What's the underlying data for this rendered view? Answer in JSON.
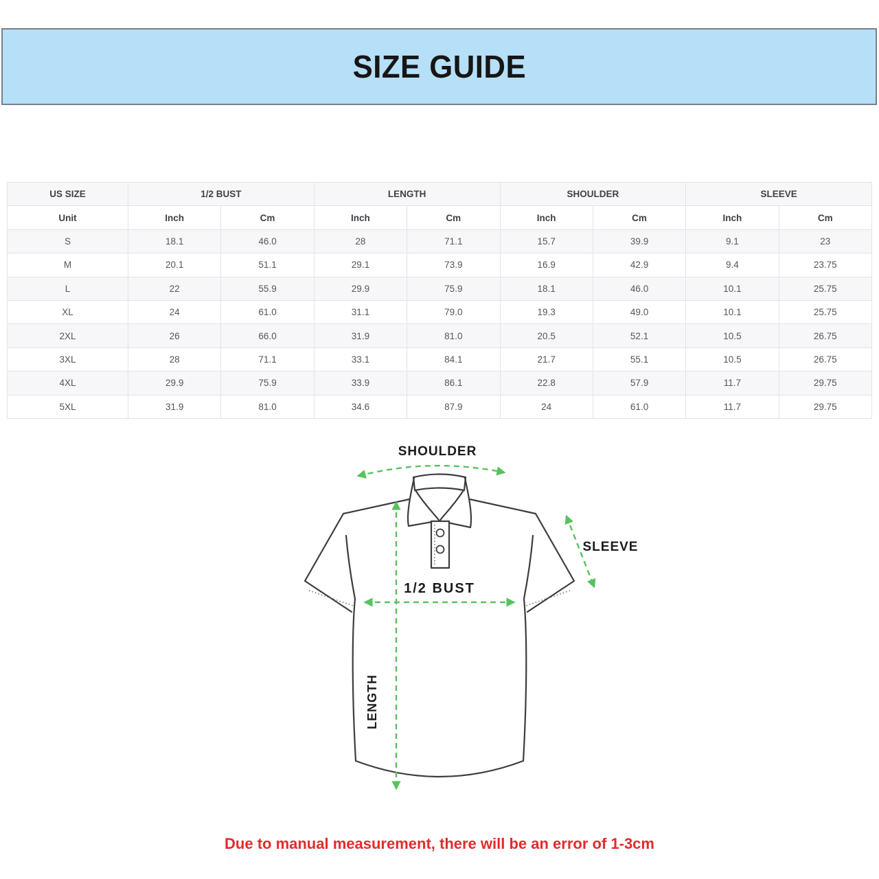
{
  "banner": {
    "title": "SIZE GUIDE"
  },
  "table": {
    "column_groups": [
      {
        "label": "US SIZE",
        "span": 1
      },
      {
        "label": "1/2 BUST",
        "span": 2
      },
      {
        "label": "LENGTH",
        "span": 2
      },
      {
        "label": "SHOULDER",
        "span": 2
      },
      {
        "label": "SLEEVE",
        "span": 2
      }
    ],
    "unit_row": [
      "Unit",
      "Inch",
      "Cm",
      "Inch",
      "Cm",
      "Inch",
      "Cm",
      "Inch",
      "Cm"
    ],
    "rows": [
      {
        "size": "S",
        "values": [
          "18.1",
          "46.0",
          "28",
          "71.1",
          "15.7",
          "39.9",
          "9.1",
          "23"
        ]
      },
      {
        "size": "M",
        "values": [
          "20.1",
          "51.1",
          "29.1",
          "73.9",
          "16.9",
          "42.9",
          "9.4",
          "23.75"
        ]
      },
      {
        "size": "L",
        "values": [
          "22",
          "55.9",
          "29.9",
          "75.9",
          "18.1",
          "46.0",
          "10.1",
          "25.75"
        ]
      },
      {
        "size": "XL",
        "values": [
          "24",
          "61.0",
          "31.1",
          "79.0",
          "19.3",
          "49.0",
          "10.1",
          "25.75"
        ]
      },
      {
        "size": "2XL",
        "values": [
          "26",
          "66.0",
          "31.9",
          "81.0",
          "20.5",
          "52.1",
          "10.5",
          "26.75"
        ]
      },
      {
        "size": "3XL",
        "values": [
          "28",
          "71.1",
          "33.1",
          "84.1",
          "21.7",
          "55.1",
          "10.5",
          "26.75"
        ]
      },
      {
        "size": "4XL",
        "values": [
          "29.9",
          "75.9",
          "33.9",
          "86.1",
          "22.8",
          "57.9",
          "11.7",
          "29.75"
        ]
      },
      {
        "size": "5XL",
        "values": [
          "31.9",
          "81.0",
          "34.6",
          "87.9",
          "24",
          "61.0",
          "11.7",
          "29.75"
        ]
      }
    ]
  },
  "diagram": {
    "shoulder_label": "SHOULDER",
    "sleeve_label": "SLEEVE",
    "half_bust_label": "1/2 BUST",
    "length_label": "LENGTH"
  },
  "footnote": {
    "text": "Due to manual measurement, there will be an error of 1-3cm"
  },
  "colors": {
    "banner_bg": "#b6dff8",
    "banner_border": "#74808b",
    "arrow_green": "#57c25e",
    "footnote_red": "#e32b2b",
    "row_alt_bg": "#f7f7f9",
    "table_border": "#e2e3e7",
    "shirt_outline": "#3d3d3d"
  }
}
